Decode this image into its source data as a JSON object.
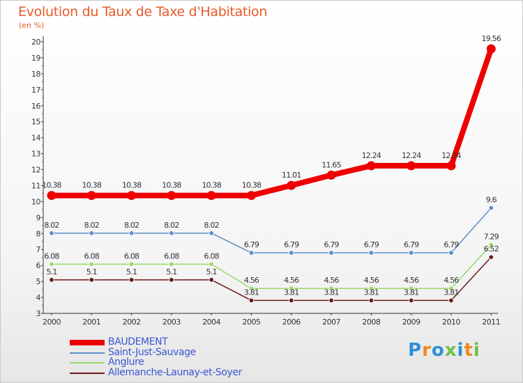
{
  "chart_data": {
    "type": "line",
    "title": "Evolution du Taux de Taxe d'Habitation",
    "subtitle": "(en %)",
    "categories": [
      "2000",
      "2001",
      "2002",
      "2003",
      "2004",
      "2005",
      "2006",
      "2007",
      "2008",
      "2009",
      "2010",
      "2011"
    ],
    "ylim": [
      3,
      20
    ],
    "yticks": [
      3,
      4,
      5,
      6,
      7,
      8,
      9,
      10,
      11,
      12,
      13,
      14,
      15,
      16,
      17,
      18,
      19,
      20
    ],
    "grid": false,
    "legend_position": "bottom-left",
    "series": [
      {
        "name": "BAUDEMENT",
        "color": "#ee0000",
        "values": [
          10.38,
          10.38,
          10.38,
          10.38,
          10.38,
          10.38,
          11.01,
          11.65,
          12.24,
          12.24,
          12.24,
          19.56
        ],
        "labels": [
          "10.38",
          "10.38",
          "10.38",
          "10.38",
          "10.38",
          "10.38",
          "11.01",
          "11.65",
          "12.24",
          "12.24",
          "12.24",
          "19.56"
        ]
      },
      {
        "name": "Saint-Just-Sauvage",
        "color": "#5b8fc8",
        "values": [
          8.02,
          8.02,
          8.02,
          8.02,
          8.02,
          6.79,
          6.79,
          6.79,
          6.79,
          6.79,
          6.79,
          9.6
        ],
        "labels": [
          "8.02",
          "8.02",
          "8.02",
          "8.02",
          "8.02",
          "6.79",
          "6.79",
          "6.79",
          "6.79",
          "6.79",
          "6.79",
          "9.6"
        ]
      },
      {
        "name": "Anglure",
        "color": "#9ad86a",
        "values": [
          6.08,
          6.08,
          6.08,
          6.08,
          6.08,
          4.56,
          4.56,
          4.56,
          4.56,
          4.56,
          4.56,
          7.29
        ],
        "labels": [
          "6.08",
          "6.08",
          "6.08",
          "6.08",
          "6.08",
          "4.56",
          "4.56",
          "4.56",
          "4.56",
          "4.56",
          "4.56",
          "7.29"
        ]
      },
      {
        "name": "Allemanche-Launay-et-Soyer",
        "color": "#6b1a1a",
        "values": [
          5.1,
          5.1,
          5.1,
          5.1,
          5.1,
          3.81,
          3.81,
          3.81,
          3.81,
          3.81,
          3.81,
          6.52
        ],
        "labels": [
          "5.1",
          "5.1",
          "5.1",
          "5.1",
          "5.1",
          "3.81",
          "3.81",
          "3.81",
          "3.81",
          "3.81",
          "3.81",
          "6.52"
        ]
      }
    ]
  },
  "brand": {
    "text": "Proxiti",
    "letter_colors": [
      "#2e8fd6",
      "#f08a1c",
      "#2e8fd6",
      "#6cc04a",
      "#2e8fd6",
      "#f08a1c",
      "#6cc04a"
    ]
  }
}
